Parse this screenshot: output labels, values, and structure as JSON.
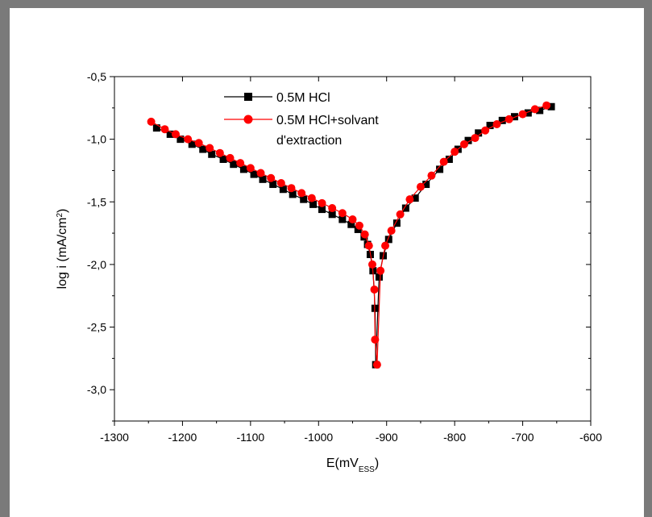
{
  "chart_data": {
    "type": "line",
    "xlabel": "E(mV",
    "xlabel_sub": "ESS",
    "xlabel_close": ")",
    "ylabel": "log i (mA/cm",
    "ylabel_sup": "2",
    "ylabel_close": ")",
    "xlim": [
      -1300,
      -600
    ],
    "ylim": [
      -3.25,
      -0.5
    ],
    "x_ticks": [
      -1300,
      -1200,
      -1100,
      -1000,
      -900,
      -800,
      -700,
      -600
    ],
    "x_tick_labels": [
      "-1300",
      "-1200",
      "-1100",
      "-1000",
      "-900",
      "-800",
      "-700",
      "-600"
    ],
    "y_ticks": [
      -0.5,
      -1.0,
      -1.5,
      -2.0,
      -2.5,
      -3.0
    ],
    "y_tick_labels": [
      "-0,5",
      "-1,0",
      "-1,5",
      "-2,0",
      "-2,5",
      "-3,0"
    ],
    "legend_position": "top-left",
    "series": [
      {
        "name": "0.5M HCl",
        "color": "#000000",
        "marker": "square",
        "points": [
          [
            -1238,
            -0.91
          ],
          [
            -1218,
            -0.96
          ],
          [
            -1203,
            -1.0
          ],
          [
            -1186,
            -1.04
          ],
          [
            -1170,
            -1.08
          ],
          [
            -1157,
            -1.12
          ],
          [
            -1140,
            -1.16
          ],
          [
            -1125,
            -1.2
          ],
          [
            -1110,
            -1.24
          ],
          [
            -1095,
            -1.28
          ],
          [
            -1082,
            -1.32
          ],
          [
            -1067,
            -1.36
          ],
          [
            -1052,
            -1.4
          ],
          [
            -1038,
            -1.44
          ],
          [
            -1022,
            -1.48
          ],
          [
            -1008,
            -1.52
          ],
          [
            -995,
            -1.56
          ],
          [
            -980,
            -1.6
          ],
          [
            -965,
            -1.64
          ],
          [
            -952,
            -1.68
          ],
          [
            -942,
            -1.72
          ],
          [
            -933,
            -1.78
          ],
          [
            -928,
            -1.84
          ],
          [
            -924,
            -1.92
          ],
          [
            -920,
            -2.05
          ],
          [
            -917,
            -2.35
          ],
          [
            -916,
            -2.8
          ],
          [
            -911,
            -2.1
          ],
          [
            -905,
            -1.93
          ],
          [
            -897,
            -1.8
          ],
          [
            -885,
            -1.67
          ],
          [
            -872,
            -1.55
          ],
          [
            -858,
            -1.47
          ],
          [
            -842,
            -1.36
          ],
          [
            -822,
            -1.24
          ],
          [
            -808,
            -1.16
          ],
          [
            -795,
            -1.08
          ],
          [
            -780,
            -1.01
          ],
          [
            -765,
            -0.95
          ],
          [
            -748,
            -0.89
          ],
          [
            -730,
            -0.85
          ],
          [
            -712,
            -0.82
          ],
          [
            -692,
            -0.79
          ],
          [
            -675,
            -0.77
          ],
          [
            -658,
            -0.74
          ]
        ]
      },
      {
        "name": "0.5M HCl+solvant d'extraction",
        "color": "#ff0000",
        "marker": "circle",
        "points": [
          [
            -1246,
            -0.86
          ],
          [
            -1226,
            -0.92
          ],
          [
            -1210,
            -0.96
          ],
          [
            -1192,
            -1.0
          ],
          [
            -1176,
            -1.03
          ],
          [
            -1160,
            -1.07
          ],
          [
            -1145,
            -1.11
          ],
          [
            -1130,
            -1.15
          ],
          [
            -1115,
            -1.19
          ],
          [
            -1100,
            -1.23
          ],
          [
            -1085,
            -1.27
          ],
          [
            -1070,
            -1.31
          ],
          [
            -1055,
            -1.35
          ],
          [
            -1040,
            -1.39
          ],
          [
            -1025,
            -1.43
          ],
          [
            -1010,
            -1.47
          ],
          [
            -995,
            -1.51
          ],
          [
            -980,
            -1.55
          ],
          [
            -965,
            -1.59
          ],
          [
            -950,
            -1.64
          ],
          [
            -940,
            -1.69
          ],
          [
            -932,
            -1.76
          ],
          [
            -926,
            -1.85
          ],
          [
            -921,
            -2.0
          ],
          [
            -918,
            -2.2
          ],
          [
            -917,
            -2.6
          ],
          [
            -914,
            -2.8
          ],
          [
            -909,
            -2.05
          ],
          [
            -902,
            -1.85
          ],
          [
            -893,
            -1.73
          ],
          [
            -880,
            -1.6
          ],
          [
            -866,
            -1.48
          ],
          [
            -850,
            -1.38
          ],
          [
            -834,
            -1.29
          ],
          [
            -816,
            -1.18
          ],
          [
            -800,
            -1.1
          ],
          [
            -786,
            -1.04
          ],
          [
            -770,
            -0.99
          ],
          [
            -755,
            -0.93
          ],
          [
            -738,
            -0.88
          ],
          [
            -720,
            -0.84
          ],
          [
            -700,
            -0.8
          ],
          [
            -682,
            -0.76
          ],
          [
            -665,
            -0.73
          ]
        ]
      }
    ]
  }
}
